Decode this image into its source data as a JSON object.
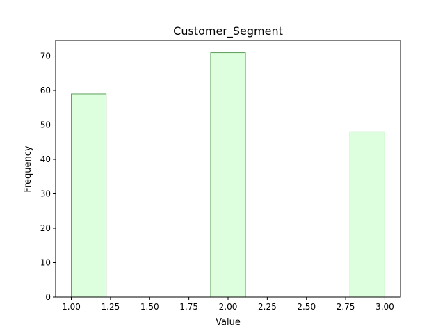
{
  "chart_data": {
    "type": "bar",
    "title": "Customer_Segment",
    "xlabel": "Value",
    "ylabel": "Frequency",
    "bins": [
      {
        "start": 1.0,
        "end": 1.2222,
        "count": 59
      },
      {
        "start": 1.8889,
        "end": 2.1111,
        "count": 71
      },
      {
        "start": 2.7778,
        "end": 3.0,
        "count": 48
      }
    ],
    "xlim": [
      0.9,
      3.1
    ],
    "ylim": [
      0,
      74.55
    ],
    "xticks": [
      1.0,
      1.25,
      1.5,
      1.75,
      2.0,
      2.25,
      2.5,
      2.75,
      3.0
    ],
    "xtick_labels": [
      "1.00",
      "1.25",
      "1.50",
      "1.75",
      "2.00",
      "2.25",
      "2.50",
      "2.75",
      "3.00"
    ],
    "yticks": [
      0,
      10,
      20,
      30,
      40,
      50,
      60,
      70
    ],
    "ytick_labels": [
      "0",
      "10",
      "20",
      "30",
      "40",
      "50",
      "60",
      "70"
    ],
    "grid": false,
    "legend": "none",
    "bar_fill": "#ddffdd",
    "bar_edge": "#5a9e5a"
  }
}
